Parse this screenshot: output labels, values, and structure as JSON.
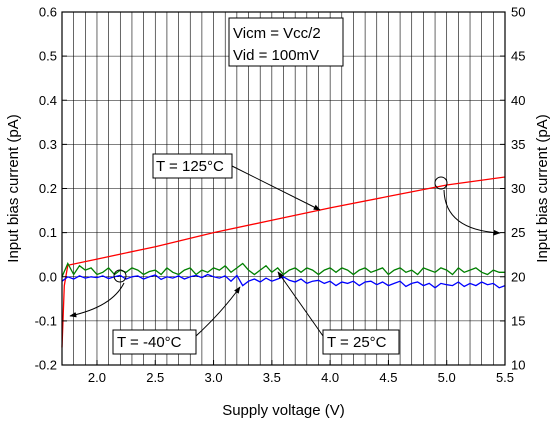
{
  "chart_data": {
    "type": "line",
    "xlabel": "Supply voltage (V)",
    "ylabel": "Input bias current (pA)",
    "y2label": "Input bias current (pA)",
    "xlim": [
      1.7,
      5.5
    ],
    "ylim": [
      -0.2,
      0.6
    ],
    "y2lim": [
      10,
      50
    ],
    "x_ticks": [
      "2.0",
      "2.5",
      "3.0",
      "3.5",
      "4.0",
      "4.5",
      "5.0",
      "5.5"
    ],
    "x_tick_values": [
      2.0,
      2.5,
      3.0,
      3.5,
      4.0,
      4.5,
      5.0,
      5.5
    ],
    "y_ticks": [
      "-0.2",
      "-0.1",
      "0.0",
      "0.1",
      "0.2",
      "0.3",
      "0.4",
      "0.5",
      "0.6"
    ],
    "y_tick_values": [
      -0.2,
      -0.1,
      0.0,
      0.1,
      0.2,
      0.3,
      0.4,
      0.5,
      0.6
    ],
    "y2_ticks": [
      "10",
      "15",
      "20",
      "25",
      "30",
      "35",
      "40",
      "45",
      "50"
    ],
    "y2_tick_values": [
      10,
      15,
      20,
      25,
      30,
      35,
      40,
      45,
      50
    ],
    "grid": true,
    "conditions": [
      "Vicm = Vcc/2",
      "Vid = 100mV"
    ],
    "series": [
      {
        "name": "T = 125°C",
        "axis": "right",
        "color": "#ff0000",
        "x": [
          1.7,
          1.72,
          1.75,
          2.0,
          2.5,
          3.0,
          3.5,
          4.0,
          4.5,
          5.0,
          5.5
        ],
        "y": [
          12.0,
          19.0,
          21.3,
          22.0,
          23.4,
          25.0,
          26.4,
          27.8,
          29.1,
          30.4,
          31.3
        ]
      },
      {
        "name": "T = 25°C",
        "axis": "left",
        "color": "#008000",
        "x": [
          1.7,
          1.75,
          1.8,
          1.85,
          1.9,
          1.95,
          2.0,
          2.05,
          2.1,
          2.15,
          2.2,
          2.25,
          2.3,
          2.35,
          2.4,
          2.45,
          2.5,
          2.55,
          2.6,
          2.65,
          2.7,
          2.75,
          2.8,
          2.85,
          2.9,
          2.95,
          3.0,
          3.05,
          3.1,
          3.15,
          3.2,
          3.25,
          3.3,
          3.35,
          3.4,
          3.45,
          3.5,
          3.55,
          3.6,
          3.65,
          3.7,
          3.75,
          3.8,
          3.85,
          3.9,
          3.95,
          4.0,
          4.05,
          4.1,
          4.15,
          4.2,
          4.25,
          4.3,
          4.35,
          4.4,
          4.45,
          4.5,
          4.55,
          4.6,
          4.65,
          4.7,
          4.75,
          4.8,
          4.85,
          4.9,
          4.95,
          5.0,
          5.05,
          5.1,
          5.15,
          5.2,
          5.25,
          5.3,
          5.35,
          5.4,
          5.45,
          5.5
        ],
        "y": [
          0.0,
          0.03,
          0.005,
          0.025,
          0.015,
          0.02,
          0.005,
          0.01,
          0.02,
          0.005,
          0.015,
          0.01,
          0.02,
          0.015,
          0.005,
          0.012,
          0.015,
          0.005,
          0.02,
          0.01,
          0.005,
          0.015,
          0.02,
          0.005,
          0.015,
          0.01,
          0.02,
          0.015,
          0.025,
          0.01,
          0.02,
          0.03,
          0.015,
          0.005,
          0.015,
          0.025,
          0.01,
          0.02,
          0.005,
          0.015,
          0.02,
          0.01,
          0.02,
          0.015,
          0.005,
          0.015,
          0.02,
          0.01,
          0.02,
          0.015,
          0.005,
          0.015,
          0.02,
          0.01,
          0.015,
          0.02,
          0.005,
          0.015,
          0.02,
          0.01,
          0.015,
          0.005,
          0.02,
          0.015,
          0.01,
          0.02,
          0.015,
          0.005,
          0.02,
          0.01,
          0.015,
          0.02,
          0.01,
          0.005,
          0.015,
          0.01,
          0.01
        ]
      },
      {
        "name": "T = -40°C",
        "axis": "left",
        "color": "#0000ff",
        "x": [
          1.7,
          1.75,
          1.8,
          1.85,
          1.9,
          1.95,
          2.0,
          2.05,
          2.1,
          2.15,
          2.2,
          2.25,
          2.3,
          2.35,
          2.4,
          2.45,
          2.5,
          2.55,
          2.6,
          2.65,
          2.7,
          2.75,
          2.8,
          2.85,
          2.9,
          2.95,
          3.0,
          3.05,
          3.1,
          3.15,
          3.2,
          3.25,
          3.3,
          3.35,
          3.4,
          3.45,
          3.5,
          3.55,
          3.6,
          3.65,
          3.7,
          3.75,
          3.8,
          3.85,
          3.9,
          3.95,
          4.0,
          4.05,
          4.1,
          4.15,
          4.2,
          4.25,
          4.3,
          4.35,
          4.4,
          4.45,
          4.5,
          4.55,
          4.6,
          4.65,
          4.7,
          4.75,
          4.8,
          4.85,
          4.9,
          4.95,
          5.0,
          5.05,
          5.1,
          5.15,
          5.2,
          5.25,
          5.3,
          5.35,
          5.4,
          5.45,
          5.5
        ],
        "y": [
          -0.01,
          0.0,
          -0.005,
          0.002,
          -0.003,
          0.0,
          -0.002,
          0.002,
          -0.004,
          0.0,
          0.003,
          -0.005,
          0.0,
          0.002,
          -0.005,
          0.0,
          0.004,
          -0.006,
          0.0,
          -0.003,
          0.002,
          -0.005,
          0.0,
          0.003,
          -0.002,
          0.005,
          0.0,
          -0.003,
          0.002,
          -0.01,
          0.003,
          -0.02,
          -0.01,
          -0.005,
          -0.012,
          -0.003,
          -0.01,
          -0.005,
          0.0,
          -0.008,
          -0.012,
          -0.005,
          -0.015,
          -0.01,
          -0.008,
          -0.015,
          -0.01,
          -0.02,
          -0.012,
          -0.015,
          -0.01,
          -0.02,
          -0.012,
          -0.01,
          -0.018,
          -0.012,
          -0.02,
          -0.015,
          -0.01,
          -0.022,
          -0.015,
          -0.012,
          -0.02,
          -0.015,
          -0.025,
          -0.015,
          -0.018,
          -0.02,
          -0.012,
          -0.022,
          -0.015,
          -0.02,
          -0.012,
          -0.018,
          -0.015,
          -0.025,
          -0.02
        ]
      }
    ],
    "annotations": [
      {
        "text": "T = 125°C",
        "series": "T = 125°C"
      },
      {
        "text": "T = -40°C",
        "series": "T = -40°C"
      },
      {
        "text": "T = 25°C",
        "series": "T = 25°C"
      }
    ]
  }
}
